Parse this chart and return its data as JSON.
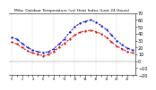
{
  "title": "Milw. Outdoor Temperature (vs) Heat Index (Last 24 Hours)",
  "x_hours": [
    0,
    1,
    2,
    3,
    4,
    5,
    6,
    7,
    8,
    9,
    10,
    11,
    12,
    13,
    14,
    15,
    16,
    17,
    18,
    19,
    20,
    21,
    22,
    23
  ],
  "temp": [
    28,
    25,
    20,
    15,
    12,
    10,
    8,
    10,
    14,
    20,
    26,
    32,
    38,
    42,
    44,
    45,
    43,
    40,
    35,
    28,
    22,
    18,
    14,
    12
  ],
  "heat_index": [
    35,
    32,
    26,
    20,
    16,
    14,
    12,
    14,
    18,
    25,
    32,
    42,
    50,
    55,
    58,
    60,
    57,
    52,
    46,
    38,
    30,
    24,
    19,
    16
  ],
  "temp_color": "#cc0000",
  "heat_color": "#0000cc",
  "background": "#ffffff",
  "grid_color": "#888888",
  "ylim": [
    -20,
    70
  ],
  "yticks": [
    -20,
    -10,
    0,
    10,
    20,
    30,
    40,
    50,
    60,
    70
  ],
  "ylabel_fontsize": 3.5,
  "title_fontsize": 3.2,
  "line_width": 0.7,
  "marker_size": 1.2,
  "x_label_fontsize": 2.5
}
